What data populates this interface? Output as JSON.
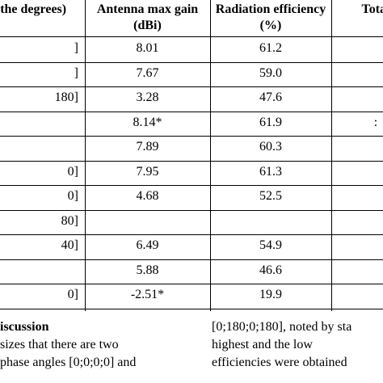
{
  "table": {
    "header": [
      "of the degrees)",
      "Antenna max gain (dBi)",
      "Radiation efficiency (%)",
      "Total"
    ],
    "rows": [
      [
        "]",
        "8.01",
        "61.2",
        null
      ],
      [
        "]",
        "7.67",
        "59.0",
        null
      ],
      [
        "180]",
        "3.28",
        "47.6",
        null
      ],
      [
        null,
        "8.14*",
        "61.9",
        ":"
      ],
      [
        null,
        "7.89",
        "60.3",
        null
      ],
      [
        "0]",
        "7.95",
        "61.3",
        null
      ],
      [
        "0]",
        "4.68",
        "52.5",
        null
      ],
      [
        "80]",
        null,
        null,
        null
      ],
      [
        "40]",
        "6.49",
        "54.9",
        null
      ],
      [
        null,
        "5.88",
        "46.6",
        null
      ],
      [
        "0]",
        "-2.51*",
        "19.9",
        null
      ]
    ]
  },
  "body": {
    "left": {
      "heading": "iscussion",
      "lines": [
        "sizes that there are two",
        "phase angles [0;0;0;0] and"
      ]
    },
    "right": {
      "lines": [
        "[0;180;0;180], noted by sta",
        "highest and the low",
        "efficiencies were obtained"
      ]
    }
  }
}
